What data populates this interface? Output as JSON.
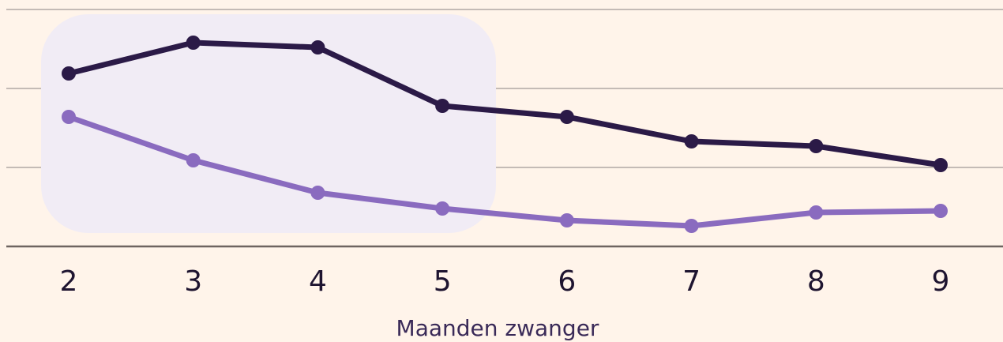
{
  "chart_data": {
    "type": "line",
    "xlabel": "Maanden zwanger",
    "x": [
      2,
      3,
      4,
      5,
      6,
      7,
      8,
      9
    ],
    "xlim": [
      2,
      9
    ],
    "xticks": [
      2,
      3,
      4,
      5,
      6,
      7,
      8,
      9
    ],
    "ylim": [
      0,
      3
    ],
    "yticks": [
      0,
      1,
      2,
      3
    ],
    "grid": true,
    "series": [
      {
        "color": "#2b1a47",
        "values": [
          2.19,
          2.58,
          2.52,
          1.78,
          1.64,
          1.33,
          1.27,
          1.03
        ]
      },
      {
        "color": "#8a6bbf",
        "values": [
          1.64,
          1.09,
          0.68,
          0.48,
          0.33,
          0.26,
          0.43,
          0.45
        ]
      }
    ]
  }
}
